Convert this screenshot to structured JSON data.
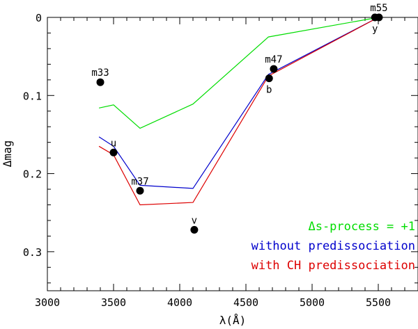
{
  "chart_data": {
    "type": "line",
    "title": "",
    "xlabel": "λ(Å)",
    "ylabel": "Δmag",
    "xlim": [
      3000,
      5800
    ],
    "ylim": [
      0,
      0.35
    ],
    "y_inverted": true,
    "x_ticks": [
      3000,
      3500,
      4000,
      4500,
      5000,
      5500
    ],
    "x_tick_labels": [
      "3000",
      "3500",
      "4000",
      "4500",
      "5000",
      "5500"
    ],
    "y_ticks": [
      0,
      0.1,
      0.2,
      0.3
    ],
    "y_tick_labels": [
      "0",
      "0.1",
      "0.2",
      "0.3"
    ],
    "series": [
      {
        "name": "Δs-process = +1",
        "color": "#00dd00",
        "x": [
          3390,
          3500,
          3700,
          4100,
          4670,
          5500
        ],
        "y": [
          0.116,
          0.112,
          0.142,
          0.111,
          0.025,
          0.0
        ]
      },
      {
        "name": "without predissociation",
        "color": "#0000cc",
        "x": [
          3390,
          3500,
          3700,
          4100,
          4670,
          5500
        ],
        "y": [
          0.153,
          0.165,
          0.215,
          0.219,
          0.073,
          0.0
        ]
      },
      {
        "name": "with CH predissociation",
        "color": "#dd0000",
        "x": [
          3390,
          3500,
          3700,
          4100,
          4670,
          5500
        ],
        "y": [
          0.165,
          0.176,
          0.24,
          0.237,
          0.075,
          0.0
        ]
      }
    ],
    "points": [
      {
        "label": "m33",
        "x": 3400,
        "y": 0.083,
        "label_pos": "above"
      },
      {
        "label": "u",
        "x": 3500,
        "y": 0.173,
        "label_pos": "above"
      },
      {
        "label": "m37",
        "x": 3700,
        "y": 0.222,
        "label_pos": "above"
      },
      {
        "label": "v",
        "x": 4110,
        "y": 0.272,
        "label_pos": "above"
      },
      {
        "label": "b",
        "x": 4675,
        "y": 0.078,
        "label_pos": "below"
      },
      {
        "label": "m47",
        "x": 4710,
        "y": 0.066,
        "label_pos": "above"
      },
      {
        "label": "y",
        "x": 5475,
        "y": 0.0,
        "label_pos": "below"
      },
      {
        "label": "m55",
        "x": 5505,
        "y": 0.0,
        "label_pos": "above"
      }
    ],
    "legend": {
      "position": "bottom-right",
      "entries": [
        {
          "text": "Δs-process = +1",
          "color": "#00dd00"
        },
        {
          "text": "without predissociation",
          "color": "#0000cc"
        },
        {
          "text": "with CH predissociation",
          "color": "#dd0000"
        }
      ]
    }
  }
}
